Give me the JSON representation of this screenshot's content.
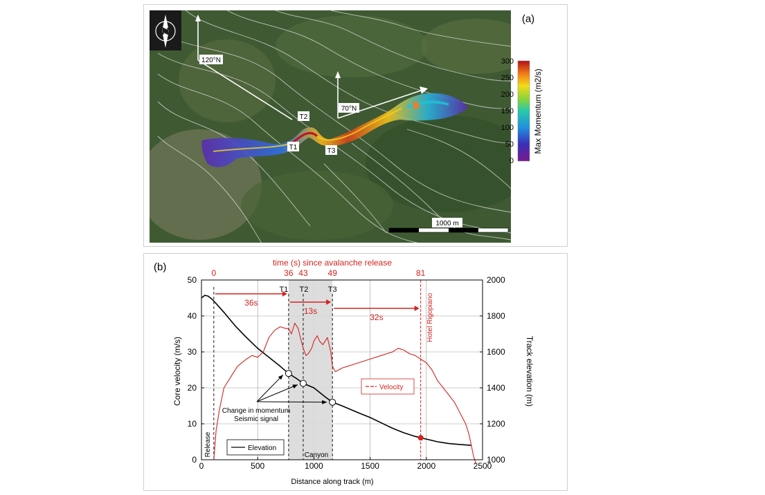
{
  "panel_a": {
    "label": "(a)",
    "colorbar_title": "Max Momentum (m2/s)",
    "colorbar_ticks": [
      "300",
      "250",
      "200",
      "150",
      "100",
      "50",
      "0"
    ],
    "direction_labels": [
      "120°N",
      "70°N"
    ],
    "track_points": [
      "T1",
      "T2",
      "T3"
    ],
    "scale_bar_label": "1000 m",
    "compass_letter": "N",
    "colors": {
      "background": "#3f5a33",
      "contours": "#e6e6e6"
    }
  },
  "panel_b": {
    "label": "(b)"
  },
  "chart_data": {
    "type": "line",
    "title": "time (s) since avalanche release",
    "xlabel": "Distance along track (m)",
    "ylabel": "Core velocity (m/s)",
    "y2label": "Track elevation (m)",
    "xlim": [
      0,
      2500
    ],
    "ylim": [
      0,
      50
    ],
    "y2lim": [
      1000,
      2000
    ],
    "x_ticks": [
      "0",
      "500",
      "1000",
      "1500",
      "2000",
      "2500"
    ],
    "y_ticks": [
      "0",
      "10",
      "20",
      "30",
      "40",
      "50"
    ],
    "y2_ticks": [
      "1000",
      "1200",
      "1400",
      "1600",
      "1800",
      "2000"
    ],
    "grid": true,
    "time_axis": {
      "labels": [
        "0",
        "36",
        "43",
        "49",
        "81"
      ],
      "x": [
        110,
        775,
        905,
        1165,
        1950
      ]
    },
    "markers": [
      {
        "label": "T1",
        "x": 775
      },
      {
        "label": "T2",
        "x": 905
      },
      {
        "label": "T3",
        "x": 1165
      }
    ],
    "intervals": [
      {
        "label": "36s",
        "from": 110,
        "to": 775
      },
      {
        "label": "13s",
        "from": 775,
        "to": 1165
      },
      {
        "label": "32s",
        "from": 1165,
        "to": 1950
      }
    ],
    "canyon": {
      "from": 775,
      "to": 1165,
      "label": "Canyon"
    },
    "release_label": "Release",
    "hotel_label": "Hotel Rigopiano",
    "hotel_x": 1950,
    "annotation": [
      "Change in momentum",
      "Seismic signal"
    ],
    "series": [
      {
        "name": "Elevation",
        "axis": "right",
        "color": "#000000",
        "x": [
          0,
          30,
          60,
          100,
          150,
          200,
          300,
          400,
          500,
          600,
          700,
          775,
          850,
          905,
          1000,
          1100,
          1165,
          1250,
          1400,
          1500,
          1600,
          1700,
          1800,
          1900,
          1950,
          2000,
          2100,
          2200,
          2300,
          2400
        ],
        "y": [
          1900,
          1915,
          1910,
          1890,
          1855,
          1820,
          1745,
          1680,
          1620,
          1570,
          1520,
          1480,
          1450,
          1425,
          1400,
          1350,
          1320,
          1300,
          1260,
          1235,
          1205,
          1175,
          1150,
          1130,
          1122,
          1115,
          1100,
          1090,
          1085,
          1080
        ]
      },
      {
        "name": "Velocity",
        "axis": "left",
        "color": "#d3231e",
        "x": [
          110,
          130,
          160,
          200,
          240,
          280,
          320,
          360,
          400,
          450,
          500,
          550,
          600,
          650,
          700,
          750,
          775,
          800,
          830,
          860,
          880,
          905,
          930,
          950,
          980,
          1000,
          1030,
          1050,
          1080,
          1100,
          1120,
          1150,
          1165,
          1190,
          1250,
          1300,
          1400,
          1500,
          1600,
          1700,
          1750,
          1800,
          1850,
          1900,
          1950,
          2000,
          2050,
          2100,
          2150,
          2200,
          2250,
          2300,
          2350,
          2380,
          2400,
          2420,
          2440
        ],
        "y": [
          0,
          8,
          14,
          20,
          22,
          24,
          26,
          27,
          28,
          29,
          28.5,
          30,
          34,
          36,
          37,
          36.5,
          36.5,
          35,
          38,
          36.5,
          34,
          31,
          29,
          29.5,
          31,
          33,
          34.5,
          33,
          32,
          33,
          34,
          30,
          26,
          24.5,
          25.5,
          26,
          27,
          28,
          29,
          30,
          31,
          30.5,
          29.5,
          29,
          28,
          27,
          25,
          22,
          20,
          18,
          16,
          13,
          10,
          7,
          4,
          1,
          -1
        ]
      }
    ],
    "elevation_point": {
      "x": 1950,
      "y": 1122
    },
    "circle_points": [
      {
        "x": 775,
        "y": 1480
      },
      {
        "x": 905,
        "y": 1425
      },
      {
        "x": 1165,
        "y": 1320
      }
    ]
  }
}
